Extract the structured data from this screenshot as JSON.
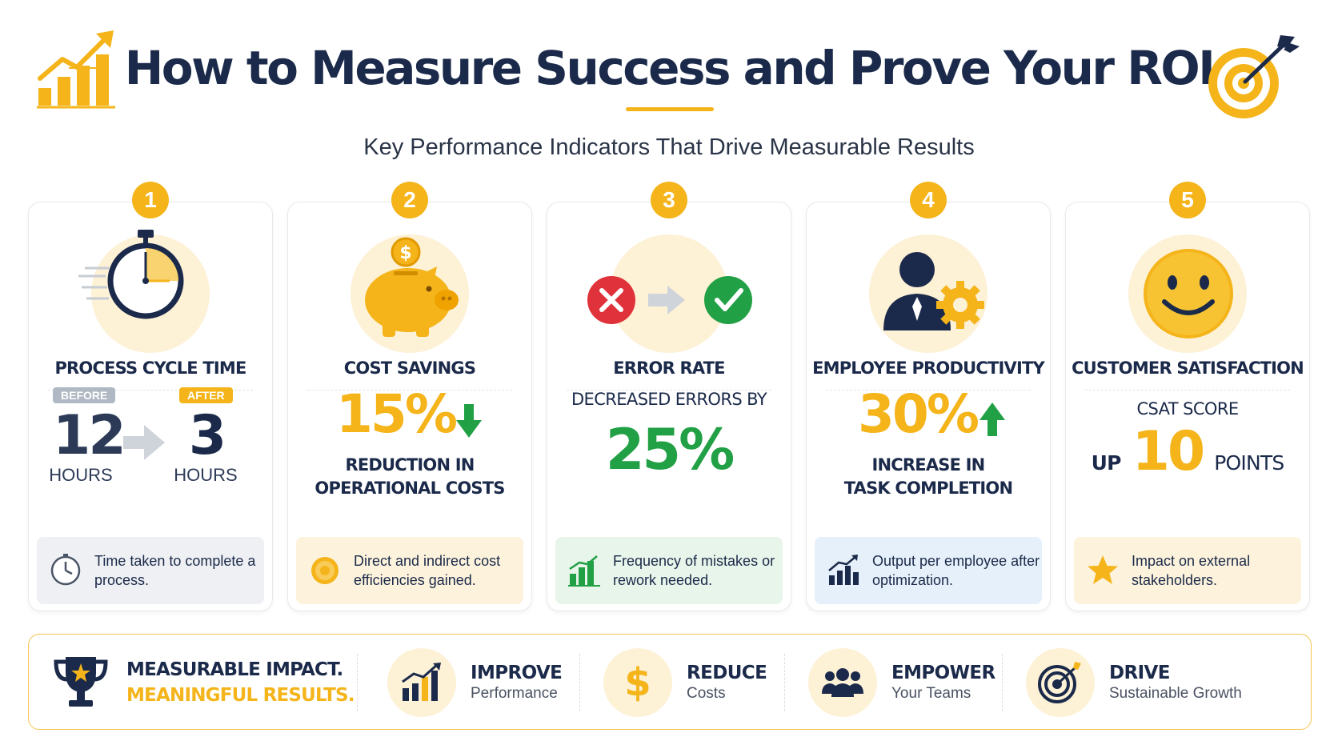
{
  "header": {
    "title": "How to Measure Success and Prove Your ROI",
    "subtitle": "Key Performance Indicators That Drive Measurable Results"
  },
  "cards": [
    {
      "number": "1",
      "title": "PROCESS CYCLE TIME",
      "before_tag": "BEFORE",
      "after_tag": "AFTER",
      "before_value": "12",
      "after_value": "3",
      "before_unit": "HOURS",
      "after_unit": "HOURS",
      "description": "Time taken to complete a process.",
      "icon": "stopwatch-icon",
      "desc_icon": "clock-icon"
    },
    {
      "number": "2",
      "title": "COST SAVINGS",
      "value": "15%",
      "label_line1": "REDUCTION IN",
      "label_line2": "OPERATIONAL COSTS",
      "description": "Direct and indirect cost efficiencies gained.",
      "icon": "piggy-bank-icon",
      "desc_icon": "coin-icon"
    },
    {
      "number": "3",
      "title": "ERROR RATE",
      "label": "DECREASED ERRORS BY",
      "value": "25%",
      "description": "Frequency of mistakes or rework needed.",
      "icon": "error-to-check-icon",
      "desc_icon": "bar-chart-icon"
    },
    {
      "number": "4",
      "title": "EMPLOYEE PRODUCTIVITY",
      "value": "30%",
      "label_line1": "INCREASE IN",
      "label_line2": "TASK COMPLETION",
      "description": "Output per employee after optimization.",
      "icon": "employee-gear-icon",
      "desc_icon": "growth-chart-icon"
    },
    {
      "number": "5",
      "title": "CUSTOMER SATISFACTION",
      "label": "CSAT SCORE",
      "prefix": "UP",
      "value": "10",
      "suffix": "POINTS",
      "description": "Impact on external stakeholders.",
      "icon": "smiley-icon",
      "desc_icon": "star-icon"
    }
  ],
  "footer": {
    "tagline_line1": "MEASURABLE IMPACT.",
    "tagline_line2": "MEANINGFUL RESULTS.",
    "items": [
      {
        "head": "IMPROVE",
        "sub": "Performance",
        "icon": "growth-chart-icon"
      },
      {
        "head": "REDUCE",
        "sub": "Costs",
        "icon": "dollar-icon"
      },
      {
        "head": "EMPOWER",
        "sub": "Your Teams",
        "icon": "team-icon"
      },
      {
        "head": "DRIVE",
        "sub": "Sustainable Growth",
        "icon": "target-icon"
      }
    ]
  },
  "colors": {
    "accent": "#f4b41a",
    "navy": "#1b2a4a",
    "green": "#22a045",
    "red": "#e0323a"
  }
}
